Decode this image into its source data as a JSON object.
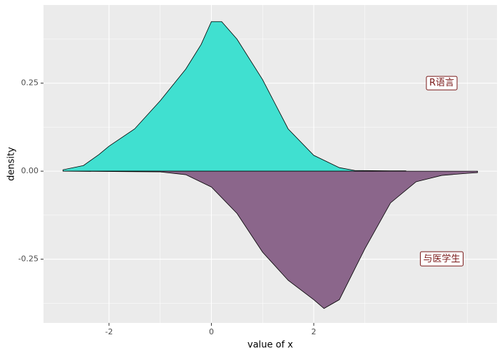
{
  "chart_data": {
    "type": "area",
    "x_label": "value of x",
    "y_label": "density",
    "xlim": [
      -3.28,
      5.58
    ],
    "ylim": [
      -0.431,
      0.472
    ],
    "xticks": [
      -2,
      0,
      2
    ],
    "yticks": [
      {
        "value": -0.25,
        "label": "-0.25"
      },
      {
        "value": 0,
        "label": "0.00"
      },
      {
        "value": 0.25,
        "label": "0.25"
      }
    ],
    "minor_xticks": [
      -1,
      1,
      3,
      5
    ],
    "minor_yticks": [
      -0.375,
      -0.125,
      0.125,
      0.375
    ],
    "grid": true,
    "series": [
      {
        "color": "#40E0D0",
        "x": [
          -2.9,
          -2.5,
          -2.2,
          -2,
          -1.5,
          -1,
          -0.5,
          -0.2,
          0,
          0.2,
          0.5,
          1,
          1.5,
          2,
          2.5,
          2.8,
          3.5,
          3.8
        ],
        "values": [
          0.004,
          0.016,
          0.047,
          0.071,
          0.12,
          0.2,
          0.29,
          0.36,
          0.425,
          0.425,
          0.375,
          0.26,
          0.12,
          0.045,
          0.01,
          0.002,
          0.001,
          0.001
        ]
      },
      {
        "color": "#8B668B",
        "x": [
          -2.9,
          -1,
          -0.5,
          0,
          0.5,
          1,
          1.5,
          2,
          2.2,
          2.5,
          3,
          3.5,
          4,
          4.5,
          5,
          5.2
        ],
        "values": [
          0,
          -0.002,
          -0.01,
          -0.045,
          -0.12,
          -0.23,
          -0.31,
          -0.365,
          -0.39,
          -0.365,
          -0.22,
          -0.09,
          -0.03,
          -0.012,
          -0.006,
          -0.004
        ]
      }
    ],
    "annotations": [
      {
        "text": "R语言",
        "x": 4.5,
        "y": 0.25
      },
      {
        "text": "与医学生",
        "x": 4.5,
        "y": -0.25
      }
    ]
  }
}
